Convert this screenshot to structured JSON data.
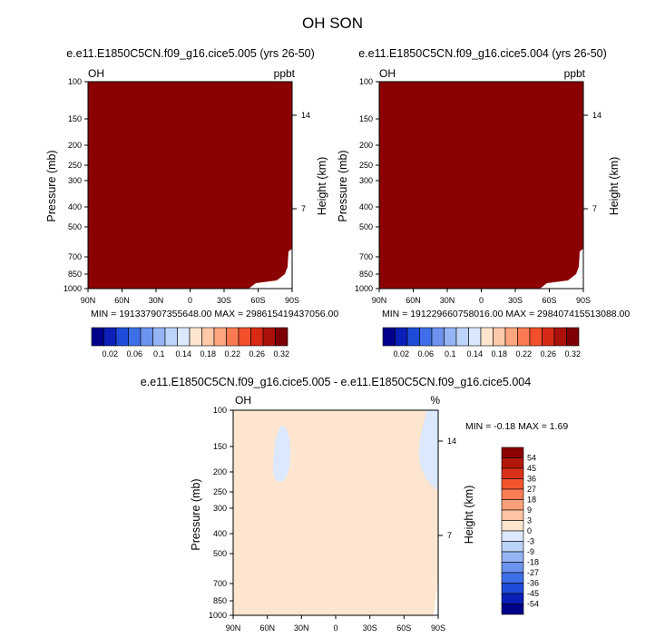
{
  "title": "OH SON",
  "chart_data": [
    {
      "type": "heatmap",
      "title": "e.e11.E1850C5CN.f09_g16.cice5.005 (yrs 26-50)",
      "left_label": "OH",
      "right_label": "ppbt",
      "xlabel": "",
      "ylabel": "Pressure (mb)",
      "ylabel_right": "Height (km)",
      "x_ticks": [
        "90N",
        "60N",
        "30N",
        "0",
        "30S",
        "60S",
        "90S"
      ],
      "y_ticks": [
        "100",
        "150",
        "200",
        "250",
        "300",
        "400",
        "500",
        "700",
        "850",
        "1000"
      ],
      "y_right_ticks": [
        "14",
        "7"
      ],
      "ylim": [
        1000,
        100
      ],
      "fill_color": "#8b0000",
      "stats": "MIN = 191337907355648.00   MAX = 298615419437056.00"
    },
    {
      "type": "heatmap",
      "title": "e.e11.E1850C5CN.f09_g16.cice5.004 (yrs 26-50)",
      "left_label": "OH",
      "right_label": "ppbt",
      "xlabel": "",
      "ylabel": "Pressure (mb)",
      "ylabel_right": "Height (km)",
      "x_ticks": [
        "90N",
        "60N",
        "30N",
        "0",
        "30S",
        "60S",
        "90S"
      ],
      "y_ticks": [
        "100",
        "150",
        "200",
        "250",
        "300",
        "400",
        "500",
        "700",
        "850",
        "1000"
      ],
      "y_right_ticks": [
        "14",
        "7"
      ],
      "ylim": [
        1000,
        100
      ],
      "fill_color": "#8b0000",
      "stats": "MIN = 191229660758016.00   MAX = 298407415513088.00"
    },
    {
      "type": "heatmap",
      "title": "e.e11.E1850C5CN.f09_g16.cice5.005 - e.e11.E1850C5CN.f09_g16.cice5.004",
      "left_label": "OH",
      "right_label": "%",
      "xlabel": "",
      "ylabel": "Pressure (mb)",
      "ylabel_right": "Height (km)",
      "x_ticks": [
        "90N",
        "60N",
        "30N",
        "0",
        "30S",
        "60S",
        "90S"
      ],
      "y_ticks": [
        "100",
        "150",
        "200",
        "250",
        "300",
        "400",
        "500",
        "700",
        "850",
        "1000"
      ],
      "y_right_ticks": [
        "14",
        "7"
      ],
      "ylim": [
        1000,
        100
      ],
      "fill_color": "#fde5d0",
      "stats": "MIN =  -0.18   MAX =   1.69"
    }
  ],
  "colorbar_top": {
    "colors": [
      "#00008b",
      "#0a1fb8",
      "#1f4bd9",
      "#3f6fe8",
      "#6b93ef",
      "#94b4f5",
      "#bcd3fa",
      "#dbe8fd",
      "#fde5d0",
      "#fdc9a8",
      "#fca57e",
      "#fb7a52",
      "#f34f2b",
      "#d62a14",
      "#a9110a",
      "#7d0005"
    ],
    "labels": [
      "0.02",
      "0.06",
      "0.1",
      "0.14",
      "0.18",
      "0.22",
      "0.26",
      "0.32"
    ]
  },
  "colorbar_diff": {
    "colors": [
      "#8b0000",
      "#b3170b",
      "#d9301a",
      "#f2552e",
      "#fb7d55",
      "#fca07c",
      "#fdc3a3",
      "#fde5d0",
      "#dbe8fd",
      "#bcd3fa",
      "#94b4f5",
      "#6b93ef",
      "#3f6fe8",
      "#1f4bd9",
      "#0a1fb8",
      "#00008b"
    ],
    "labels": [
      "54",
      "45",
      "36",
      "27",
      "18",
      "9",
      "3",
      "0",
      "-3",
      "-9",
      "-18",
      "-27",
      "-36",
      "-45",
      "-54"
    ]
  }
}
